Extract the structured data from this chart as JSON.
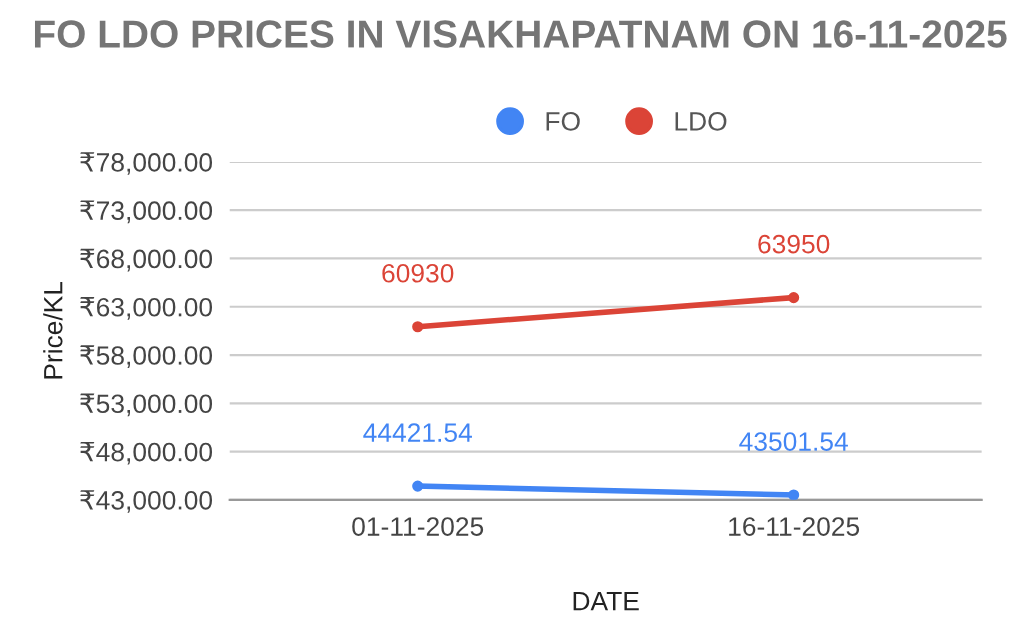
{
  "chart_data": {
    "type": "line",
    "title": "FO LDO PRICES IN VISAKHAPATNAM ON 16-11-2025",
    "xlabel": "DATE",
    "ylabel": "Price/KL",
    "categories": [
      "01-11-2025",
      "16-11-2025"
    ],
    "series": [
      {
        "name": "FO",
        "color": "#4285f4",
        "values": [
          44421.54,
          43501.54
        ]
      },
      {
        "name": "LDO",
        "color": "#db4437",
        "values": [
          60930,
          63950
        ]
      }
    ],
    "ylim": [
      43000,
      78000
    ],
    "yticks": [
      {
        "value": 43000,
        "label": "₹43,000.00"
      },
      {
        "value": 48000,
        "label": "₹48,000.00"
      },
      {
        "value": 53000,
        "label": "₹53,000.00"
      },
      {
        "value": 58000,
        "label": "₹58,000.00"
      },
      {
        "value": 63000,
        "label": "₹63,000.00"
      },
      {
        "value": 68000,
        "label": "₹68,000.00"
      },
      {
        "value": 73000,
        "label": "₹73,000.00"
      },
      {
        "value": 78000,
        "label": "₹78,000.00"
      }
    ],
    "grid": "y",
    "legend": "top",
    "marker": "circle",
    "line_style": "solid",
    "data_labels": true
  }
}
